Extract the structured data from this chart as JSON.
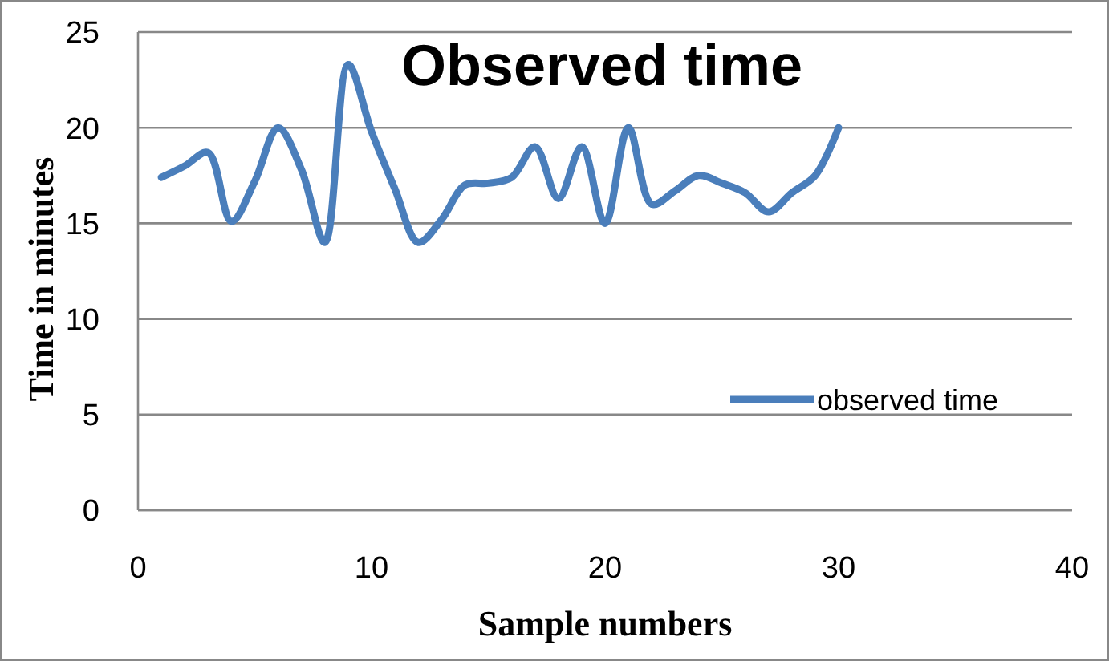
{
  "chart_data": {
    "type": "line",
    "title": "Observed time",
    "xlabel": "Sample numbers",
    "ylabel": "Time in minutes",
    "x": [
      1,
      2,
      3,
      4,
      5,
      6,
      7,
      8,
      9,
      10,
      11,
      12,
      13,
      14,
      15,
      16,
      17,
      18,
      19,
      20,
      21,
      22,
      23,
      24,
      25,
      26,
      27,
      28,
      29,
      30
    ],
    "series": [
      {
        "name": "observed time",
        "color": "#4a7ebb",
        "values": [
          17.4,
          18,
          18.7,
          15.1,
          17.2,
          20,
          17.8,
          14,
          23.3,
          19.8,
          16.8,
          14,
          15.2,
          17,
          17.1,
          17.4,
          19,
          16.3,
          19,
          15,
          20,
          16,
          16.7,
          17.5,
          17.1,
          16.6,
          15.6,
          16.6,
          17.5,
          20
        ]
      }
    ],
    "xlim": [
      0,
      40
    ],
    "xticks": [
      0,
      10,
      20,
      30,
      40
    ],
    "ylim": [
      0,
      25
    ],
    "yticks": [
      0,
      5,
      10,
      15,
      20,
      25
    ],
    "grid": "y",
    "legend": "right",
    "marker": "none",
    "line_style": "solid"
  }
}
